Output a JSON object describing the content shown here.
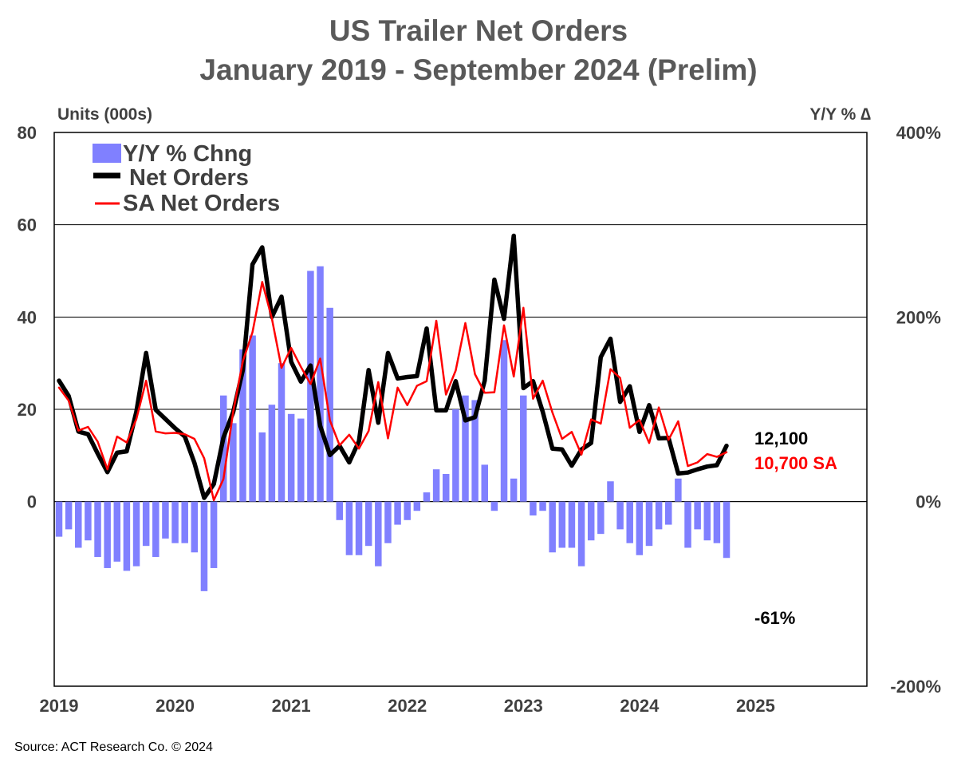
{
  "title_line1": "US Trailer Net Orders",
  "title_line2": "January 2019 - September 2024 (Prelim)",
  "left_axis_label": "Units (000s)",
  "right_axis_label": "Y/Y % ∆",
  "source": "Source: ACT Research Co. © 2024",
  "colors": {
    "bar": "#8080ff",
    "net_orders": "#000000",
    "sa_net_orders": "#ff0000",
    "grid": "#000000",
    "text": "#404040"
  },
  "chart_data": {
    "type": "line",
    "x_labels": [
      "2019",
      "2020",
      "2021",
      "2022",
      "2023",
      "2024",
      "2025"
    ],
    "left_axis": {
      "label": "Units (000s)",
      "ylim": [
        -40,
        80
      ],
      "tick_values": [
        0,
        20,
        40,
        60,
        80
      ],
      "tick_labels": [
        "0",
        "20",
        "40",
        "60",
        "80"
      ]
    },
    "right_axis": {
      "label": "Y/Y % ∆",
      "ylim": [
        -200,
        400
      ],
      "tick_values": [
        -200,
        0,
        200,
        400
      ],
      "tick_labels": [
        "-200%",
        "0%",
        "200%",
        "400%"
      ]
    },
    "grid": true,
    "legend": "top-left",
    "legend_labels": {
      "bars": "Y/Y % Chng",
      "net": "Net Orders",
      "sa": "SA Net Orders"
    },
    "months_from": "2019-01",
    "series": [
      {
        "name": "Net Orders",
        "axis": "left",
        "kind": "line",
        "values": [
          26.2,
          22.9,
          15.2,
          14.6,
          10.4,
          6.4,
          10.6,
          10.9,
          19.5,
          32.2,
          19.9,
          17.9,
          15.9,
          14.1,
          8.4,
          0.8,
          3.8,
          13.9,
          19.4,
          28.5,
          51.4,
          55.1,
          40.0,
          44.4,
          30.3,
          26.0,
          29.5,
          16.4,
          10.1,
          12.1,
          8.5,
          13.1,
          28.5,
          17.1,
          32.2,
          26.7,
          27.0,
          27.2,
          37.5,
          19.8,
          19.8,
          26.1,
          17.6,
          18.3,
          26.2,
          48.1,
          39.6,
          57.6,
          24.6,
          26.1,
          19.5,
          11.5,
          11.3,
          7.8,
          11.3,
          12.7,
          31.3,
          35.3,
          21.6,
          25.0,
          15.1,
          20.9,
          13.7,
          13.8,
          6.1,
          6.3,
          7.0,
          7.6,
          7.9,
          12.1
        ]
      },
      {
        "name": "SA Net Orders",
        "axis": "left",
        "kind": "line",
        "values": [
          24.7,
          21.9,
          15.4,
          16.2,
          13.0,
          7.0,
          14.1,
          12.8,
          17.9,
          26.2,
          15.2,
          14.8,
          14.9,
          14.6,
          13.6,
          9.4,
          0.3,
          4.9,
          19.5,
          30.4,
          36.7,
          47.6,
          39.7,
          29.0,
          33.3,
          29.2,
          25.5,
          31.0,
          17.6,
          12.2,
          14.5,
          11.5,
          15.3,
          25.9,
          13.7,
          24.7,
          20.9,
          25.1,
          26.1,
          39.2,
          23.2,
          28.4,
          38.7,
          27.6,
          23.6,
          23.7,
          38.2,
          27.1,
          42.0,
          22.3,
          26.2,
          19.3,
          13.6,
          15.1,
          10.2,
          17.8,
          16.9,
          28.7,
          26.8,
          16.0,
          17.7,
          12.7,
          20.4,
          13.4,
          17.4,
          7.7,
          8.5,
          10.3,
          9.7,
          10.7
        ]
      },
      {
        "name": "Y/Y % Chng",
        "axis": "right",
        "kind": "bar",
        "values": [
          -38,
          -30,
          -50,
          -42,
          -60,
          -72,
          -65,
          -75,
          -70,
          -48,
          -60,
          -40,
          -45,
          -45,
          -55,
          -97,
          -72,
          115,
          85,
          165,
          180,
          75,
          105,
          150,
          95,
          90,
          250,
          255,
          210,
          -20,
          -58,
          -58,
          -48,
          -70,
          -45,
          -25,
          -20,
          -10,
          10,
          35,
          30,
          100,
          115,
          110,
          40,
          -10,
          175,
          25,
          115,
          -15,
          -10,
          -55,
          -50,
          -50,
          -70,
          -42,
          -35,
          22,
          -30,
          -45,
          -58,
          -48,
          -30,
          -25,
          25,
          -50,
          -30,
          -42,
          -45,
          -61
        ]
      }
    ],
    "annotations": {
      "net_end": "12,100",
      "sa_end": "10,700 SA",
      "yoy_end": "-61%"
    }
  }
}
